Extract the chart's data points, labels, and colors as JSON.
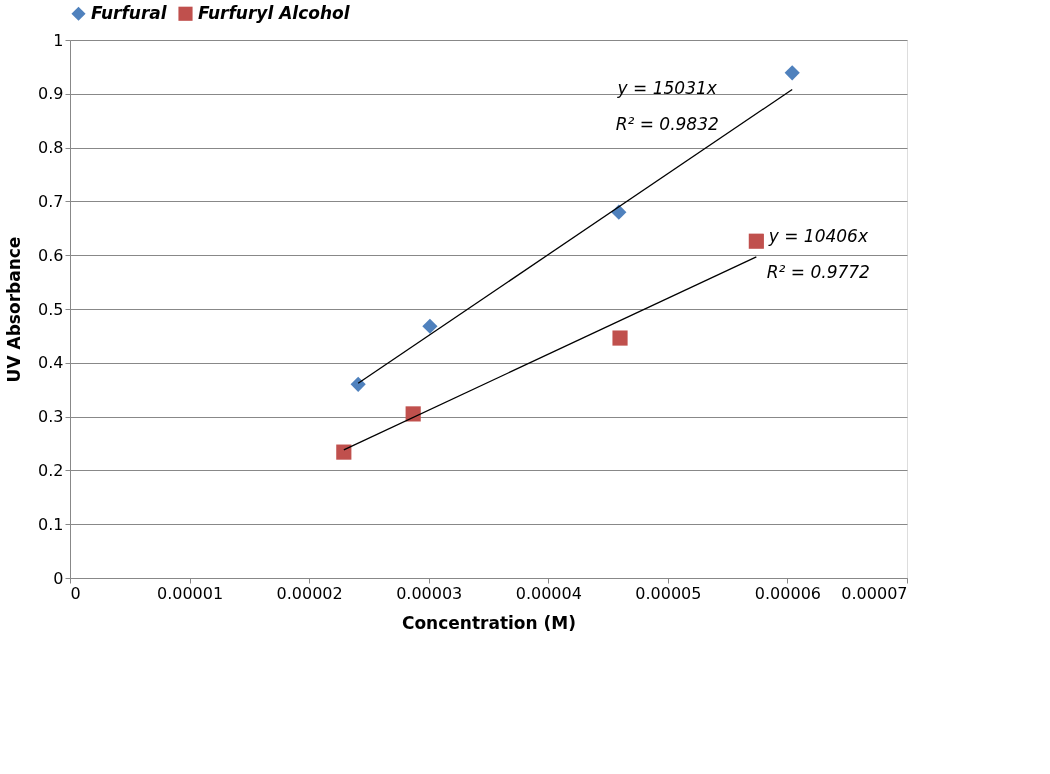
{
  "chart_data": {
    "type": "scatter",
    "xlabel": "Concentration (M)",
    "ylabel": "UV Absorbance",
    "xlim": [
      0,
      7e-05
    ],
    "xticks": [
      0,
      {
        "value": 1e-05,
        "label": "0.00001"
      },
      {
        "value": 2e-05,
        "label": "0.00002"
      },
      {
        "value": 3e-05,
        "label": "0.00003"
      },
      {
        "value": 4e-05,
        "label": "0.00004"
      },
      {
        "value": 5e-05,
        "label": "0.00005"
      },
      {
        "value": 6e-05,
        "label": "0.00006"
      },
      {
        "value": 7e-05,
        "label": "0.00007"
      }
    ],
    "ylim": [
      0,
      1
    ],
    "yticks": [
      0,
      0.1,
      0.2,
      0.3,
      0.4,
      0.5,
      0.6,
      0.7,
      0.8,
      0.9,
      1
    ],
    "grid": "y",
    "legend": "top",
    "series": [
      {
        "name": "Furfural",
        "color": "#4f81bd",
        "marker": "diamond",
        "x": [
          2.41e-05,
          3.01e-05,
          4.59e-05,
          6.04e-05
        ],
        "values": [
          0.36,
          0.468,
          0.68,
          0.939
        ]
      },
      {
        "name": "Furfuryl Alcohol",
        "color": "#c0504d",
        "marker": "square",
        "x": [
          2.29e-05,
          2.87e-05,
          4.6e-05,
          5.74e-05
        ],
        "values": [
          0.234,
          0.305,
          0.446,
          0.626
        ]
      },
      {
        "type": "line",
        "color": "#000000",
        "marker": "none",
        "x": [
          2.41e-05,
          6.04e-05
        ],
        "values": [
          0.362,
          0.908
        ]
      },
      {
        "type": "line",
        "color": "#000000",
        "marker": "none",
        "x": [
          2.29e-05,
          5.74e-05
        ],
        "values": [
          0.238,
          0.597
        ]
      }
    ],
    "annotations": [
      "y = 15031x",
      "R² = 0.9832",
      "y = 10406x",
      "R² = 0.9772"
    ]
  }
}
